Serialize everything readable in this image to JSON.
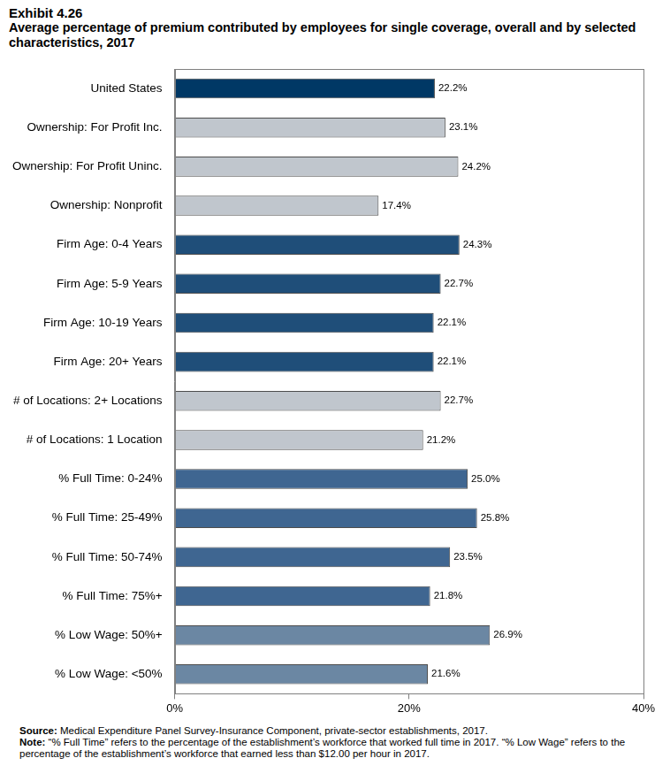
{
  "chart_data": {
    "type": "bar",
    "exhibit": "Exhibit 4.26",
    "title": "Average percentage of premium contributed by employees for single coverage, overall and by selected characteristics, 2017",
    "orientation": "horizontal",
    "categories": [
      "United States",
      "Ownership: For Profit Inc.",
      "Ownership: For Profit Uninc.",
      "Ownership: Nonprofit",
      "Firm Age: 0-4 Years",
      "Firm Age: 5-9 Years",
      "Firm Age: 10-19 Years",
      "Firm Age: 20+ Years",
      "# of Locations: 2+ Locations",
      "# of Locations: 1 Location",
      "% Full Time: 0-24%",
      "% Full Time: 25-49%",
      "% Full Time: 50-74%",
      "% Full Time: 75%+",
      "% Low Wage: 50%+",
      "% Low Wage: <50%"
    ],
    "values": [
      22.2,
      23.1,
      24.2,
      17.4,
      24.3,
      22.7,
      22.1,
      22.1,
      22.7,
      21.2,
      25.0,
      25.8,
      23.5,
      21.8,
      26.9,
      21.6
    ],
    "value_labels": [
      "22.2%",
      "23.1%",
      "24.2%",
      "17.4%",
      "24.3%",
      "22.7%",
      "22.1%",
      "22.1%",
      "22.7%",
      "21.2%",
      "25.0%",
      "25.8%",
      "23.5%",
      "21.8%",
      "26.9%",
      "21.6%"
    ],
    "colors": [
      "#003865",
      "#c0c6cd",
      "#c0c6cd",
      "#c0c6cd",
      "#1f4e79",
      "#1f4e79",
      "#1f4e79",
      "#1f4e79",
      "#c0c6cd",
      "#c0c6cd",
      "#3f6691",
      "#3f6691",
      "#3f6691",
      "#3f6691",
      "#6b87a3",
      "#6b87a3"
    ],
    "xlim": [
      0,
      40
    ],
    "xticks": [
      {
        "value": 0,
        "label": "0%"
      },
      {
        "value": 20,
        "label": "20%"
      },
      {
        "value": 40,
        "label": "40%"
      }
    ],
    "grid": false,
    "data_labels": true,
    "annotations": [
      {
        "heading": "Source:",
        "text": "Medical Expenditure Panel Survey-Insurance Component, private-sector establishments, 2017."
      },
      {
        "heading": "Note:",
        "text": "“% Full Time” refers to the percentage of the establishment’s workforce that worked full time in 2017. “% Low Wage” refers to the percentage of the establishment’s workforce that earned less than $12.00 per hour in 2017."
      }
    ]
  }
}
